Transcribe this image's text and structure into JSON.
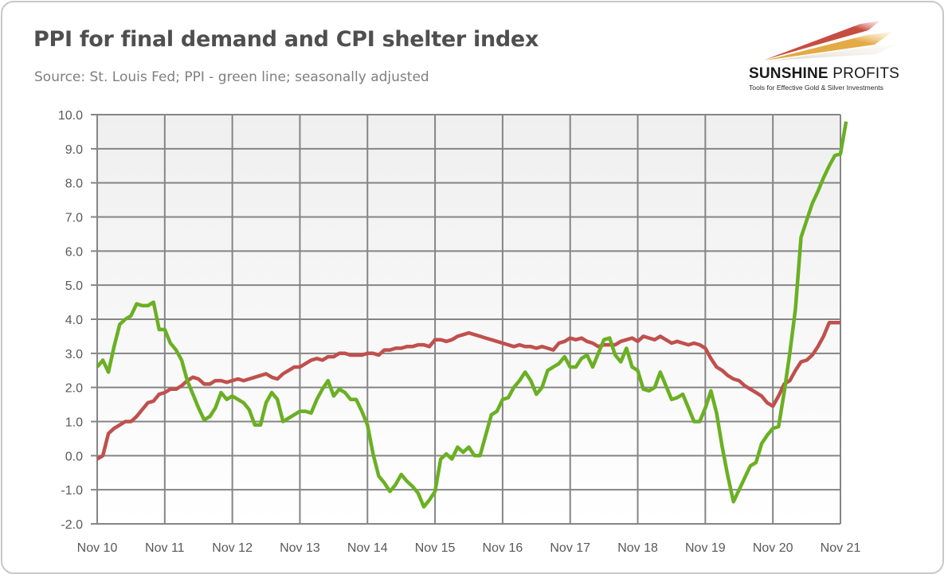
{
  "header": {
    "title": "PPI for final demand and CPI shelter index",
    "subtitle": "Source: St. Louis Fed; PPI - green line; seasonally adjusted"
  },
  "logo": {
    "name_bold": "SUNSHINE",
    "name_light": "PROFITS",
    "tagline": "Tools for Effective Gold & Silver Investments"
  },
  "colors": {
    "ppi": "#6ab023",
    "shelter": "#c0504d",
    "grid": "#858585",
    "plot_top": "#efefef",
    "plot_bottom": "#ffffff",
    "text": "#595959"
  },
  "chart_data": {
    "type": "line",
    "title": "PPI for final demand and CPI shelter index",
    "subtitle": "Source: St. Louis Fed; PPI - green line; seasonally adjusted",
    "xlabel": "",
    "ylabel": "",
    "ylim": [
      -2.0,
      10.0
    ],
    "y_ticks": [
      "10.0",
      "9.0",
      "8.0",
      "7.0",
      "6.0",
      "5.0",
      "4.0",
      "3.0",
      "2.0",
      "1.0",
      "0.0",
      "-1.0",
      "-2.0"
    ],
    "x_ticks": [
      "Nov 10",
      "Nov 11",
      "Nov 12",
      "Nov 13",
      "Nov 14",
      "Nov 15",
      "Nov 16",
      "Nov 17",
      "Nov 18",
      "Nov 19",
      "Nov 20",
      "Nov 21"
    ],
    "x_start": "Nov 10",
    "x_end": "Nov 21",
    "frequency": "monthly",
    "grid": true,
    "legend": "none",
    "series": [
      {
        "name": "PPI for final demand",
        "color": "#6ab023",
        "values": [
          2.6,
          2.8,
          2.45,
          3.2,
          3.85,
          4.0,
          4.1,
          4.45,
          4.4,
          4.4,
          4.5,
          3.7,
          3.7,
          3.3,
          3.1,
          2.8,
          2.2,
          1.8,
          1.4,
          1.05,
          1.15,
          1.4,
          1.85,
          1.65,
          1.75,
          1.65,
          1.55,
          1.35,
          0.9,
          0.9,
          1.55,
          1.85,
          1.65,
          1.0,
          1.1,
          1.2,
          1.3,
          1.3,
          1.25,
          1.65,
          1.95,
          2.2,
          1.75,
          1.95,
          1.85,
          1.65,
          1.65,
          1.3,
          0.9,
          0.05,
          -0.6,
          -0.8,
          -1.05,
          -0.85,
          -0.55,
          -0.75,
          -0.9,
          -1.1,
          -1.5,
          -1.3,
          -1.05,
          -0.1,
          0.05,
          -0.1,
          0.25,
          0.1,
          0.25,
          0.0,
          0.0,
          0.6,
          1.2,
          1.3,
          1.65,
          1.7,
          2.0,
          2.2,
          2.45,
          2.2,
          1.8,
          2.0,
          2.5,
          2.6,
          2.7,
          2.9,
          2.6,
          2.6,
          2.85,
          2.95,
          2.6,
          3.0,
          3.4,
          3.45,
          2.95,
          2.75,
          3.15,
          2.6,
          2.5,
          1.95,
          1.9,
          2.0,
          2.45,
          2.05,
          1.65,
          1.7,
          1.8,
          1.4,
          1.0,
          1.0,
          1.4,
          1.9,
          1.25,
          0.25,
          -0.6,
          -1.35,
          -1.0,
          -0.65,
          -0.3,
          -0.2,
          0.35,
          0.6,
          0.8,
          0.85,
          1.85,
          3.0,
          4.3,
          6.4,
          6.9,
          7.4,
          7.75,
          8.15,
          8.5,
          8.8,
          8.85,
          9.8
        ]
      },
      {
        "name": "CPI shelter index",
        "color": "#c0504d",
        "values": [
          -0.1,
          0.0,
          0.65,
          0.8,
          0.9,
          1.0,
          1.0,
          1.15,
          1.35,
          1.55,
          1.6,
          1.8,
          1.85,
          1.95,
          1.95,
          2.05,
          2.2,
          2.3,
          2.25,
          2.1,
          2.1,
          2.2,
          2.2,
          2.15,
          2.2,
          2.25,
          2.2,
          2.25,
          2.3,
          2.35,
          2.4,
          2.3,
          2.25,
          2.4,
          2.5,
          2.6,
          2.6,
          2.7,
          2.8,
          2.85,
          2.8,
          2.9,
          2.9,
          3.0,
          3.0,
          2.95,
          2.95,
          2.95,
          3.0,
          3.0,
          2.95,
          3.1,
          3.1,
          3.15,
          3.15,
          3.2,
          3.2,
          3.25,
          3.25,
          3.2,
          3.4,
          3.4,
          3.35,
          3.4,
          3.5,
          3.55,
          3.6,
          3.55,
          3.5,
          3.45,
          3.4,
          3.35,
          3.3,
          3.25,
          3.2,
          3.25,
          3.2,
          3.2,
          3.15,
          3.2,
          3.15,
          3.1,
          3.3,
          3.35,
          3.45,
          3.4,
          3.45,
          3.35,
          3.3,
          3.2,
          3.25,
          3.25,
          3.25,
          3.35,
          3.4,
          3.45,
          3.35,
          3.5,
          3.45,
          3.4,
          3.5,
          3.4,
          3.3,
          3.35,
          3.3,
          3.25,
          3.3,
          3.25,
          3.15,
          2.85,
          2.6,
          2.5,
          2.35,
          2.25,
          2.2,
          2.05,
          1.95,
          1.85,
          1.75,
          1.55,
          1.45,
          1.75,
          2.1,
          2.2,
          2.5,
          2.75,
          2.8,
          2.95,
          3.2,
          3.5,
          3.9,
          3.9,
          3.9
        ]
      }
    ]
  }
}
